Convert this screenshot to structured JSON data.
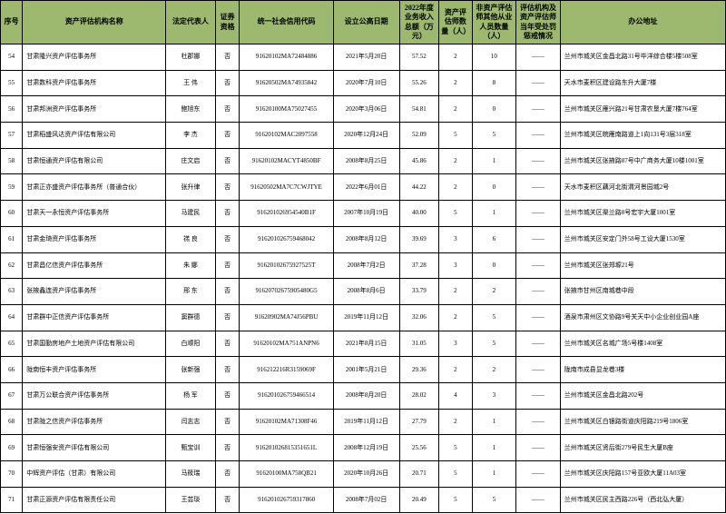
{
  "columns": [
    "序号",
    "资产评估机构名称",
    "法定代表人",
    "证券资格",
    "统一社会信用代码",
    "设立公高日期",
    "2022年度业务收入总额（万元）",
    "资产评估师数量（人）",
    "非资产评估师其他从业人员数量（人）",
    "评估机构及资产评估师当年受处罚惩戒情况",
    "办公地址"
  ],
  "rows": [
    [
      "54",
      "甘肃隆兴资产评估事务所",
      "杜郡娜",
      "否",
      "91620102MA72484886",
      "2021年5月20日",
      "57.52",
      "2",
      "10",
      "——",
      "兰州市城关区金昌北路31号毕洋综合楼5楼508室"
    ],
    [
      "55",
      "甘肃数科资产评估事务所",
      "王  伟",
      "否",
      "91620502MA74935842",
      "2020年7月10日",
      "55.26",
      "2",
      "8",
      "——",
      "天水市麦积区建设路东升大厦7楼"
    ],
    [
      "56",
      "甘肃邦洲资产评估事务所",
      "鲍旭东",
      "否",
      "91620100MA75027455",
      "2020年3月06日",
      "54.81",
      "2",
      "0",
      "——",
      "兰州市城关区雁兴路21号甘肃农垦大厦7楼764室"
    ],
    [
      "57",
      "甘肃稻盛风达资产评估有限公司",
      "李  杰",
      "否",
      "91620102MAC2097558",
      "2020年12月24日",
      "52.09",
      "5",
      "5",
      "——",
      "兰州市城关区皖雁南路道上1向131号3层318室"
    ],
    [
      "58",
      "甘肃恒通资产评估有限公司",
      "庄文启",
      "否",
      "91620102MACYT4850BF",
      "2008年8月25日",
      "45.86",
      "2",
      "1",
      "——",
      "兰州市城关区张掖路87号中广商务大厦10楼1001室"
    ],
    [
      "59",
      "甘肃正亦盛资产评估事务所（普通合伙）",
      "张升律",
      "否",
      "91620502MA7C7CWJTYE",
      "2022年6月01日",
      "44.22",
      "2",
      "0",
      "——",
      "天水市麦积区藕河北街渭河景园城2号"
    ],
    [
      "60",
      "甘肃天一永恒资产评估事务所",
      "马建民",
      "否",
      "916201026954540B1F",
      "2007年10月19日",
      "40.00",
      "5",
      "1",
      "——",
      "兰州市城关区渠兰路8号宏宇大厦1001室"
    ],
    [
      "61",
      "甘肃金琦资产评估事务所",
      "禚  良",
      "否",
      "916201026759468042",
      "2008年8月12日",
      "39.69",
      "3",
      "6",
      "——",
      "兰州市城关区安定门外58号工设大厦1530室"
    ],
    [
      "62",
      "甘肃昌亿信资产评估事务所",
      "朱  娜",
      "否",
      "91620102675927525T",
      "2008年7月2日",
      "37.28",
      "3",
      "0",
      "——",
      "兰州市城关区张郑塬21号"
    ],
    [
      "63",
      "张掖鑫连资产评估事务所",
      "邢  东",
      "否",
      "91620702675905480G5",
      "2008年8月6日",
      "33.79",
      "2",
      "2",
      "——",
      "张掖市甘州区南城巷中段"
    ],
    [
      "64",
      "甘肃群中正信资产评估事务所",
      "窦群德",
      "否",
      "91620902MA74J56PBU",
      "2019年11月12日",
      "32.06",
      "2",
      "5",
      "——",
      "酒泉市肃州区文协路9号关天中小企业创业园A座"
    ],
    [
      "65",
      "甘肃国勤房地产土地资产评估有限公司",
      "白顺阳",
      "否",
      "91620102MA751ANPN6",
      "2021年8月15日",
      "31.05",
      "3",
      "5",
      "——",
      "兰州市城关区名城广场5号楼1408室"
    ],
    [
      "66",
      "陇南恒丰资产评估事务所",
      "张新强",
      "否",
      "916212216R3159069F",
      "2001年5月21日",
      "29.36",
      "2",
      "2",
      "——",
      "陇南市成县显龙巷3楼"
    ],
    [
      "67",
      "甘肃万公联合资产评估事务所",
      "杨  军",
      "否",
      "916201026759466514",
      "2008年8月20日",
      "28.02",
      "4",
      "3",
      "——",
      "兰州市城关区金昌北路202号"
    ],
    [
      "68",
      "甘肃陇之信资产评估事务所",
      "闫志志",
      "否",
      "91620102MA71308F46",
      "2019年11月12日",
      "27.79",
      "2",
      "1",
      "——",
      "兰州市城关区白银路街道庆阳路219号1806室"
    ],
    [
      "69",
      "甘肃恒强安资产评估有限公司",
      "甄宝训",
      "否",
      "916201026815351651L",
      "2008年12月19日",
      "25.56",
      "5",
      "1",
      "——",
      "兰州市城关区贤后街279号民生大厦B座"
    ],
    [
      "70",
      "中辉资产评估（甘肃）有限公司",
      "马筱瑞",
      "否",
      "91620100MA758QB21",
      "2020年10月26日",
      "20.71",
      "5",
      "1",
      "——",
      "兰州市城关区庆阳路157号亚欧大厦11A03室"
    ],
    [
      "71",
      "甘肃正源资产评估有限责任公司",
      "王芸琰",
      "否",
      "916201026759317860",
      "2008年7月02日",
      "20.49",
      "5",
      "5",
      "——",
      "兰州市城关区民主西路226号（西北弘大厦）"
    ]
  ]
}
